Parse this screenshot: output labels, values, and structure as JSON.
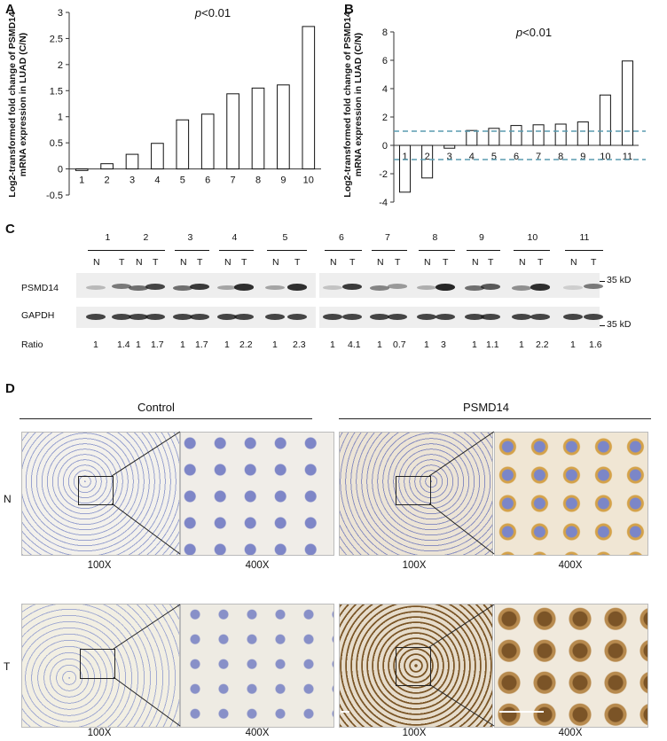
{
  "panels": {
    "a": "A",
    "b": "B",
    "c": "C",
    "d": "D"
  },
  "chart_data": [
    {
      "type": "bar",
      "ylabel": "Log2-transformed fold change of PSMD14 mRNA expression in LUAD (C/N)",
      "annotation": "p<0.01",
      "categories": [
        "1",
        "2",
        "3",
        "4",
        "5",
        "6",
        "7",
        "8",
        "9",
        "10"
      ],
      "values": [
        -0.03,
        0.1,
        0.28,
        0.49,
        0.94,
        1.05,
        1.44,
        1.55,
        1.61,
        2.73
      ],
      "ylim": [
        -0.5,
        3
      ],
      "yticks": [
        "-0.5",
        "0",
        "0.5",
        "1",
        "1.5",
        "2",
        "2.5",
        "3"
      ]
    },
    {
      "type": "bar",
      "ylabel": "Log2-transformed fold change of PSMD14 mRNA expression in LUAD (C/N)",
      "annotation": "p<0.01",
      "categories": [
        "1",
        "2",
        "3",
        "4",
        "5",
        "6",
        "7",
        "8",
        "9",
        "10",
        "11"
      ],
      "values": [
        -3.3,
        -2.3,
        -0.2,
        1.05,
        1.2,
        1.4,
        1.45,
        1.5,
        1.65,
        3.55,
        5.95
      ],
      "ylim": [
        -4,
        8
      ],
      "yticks": [
        "-4",
        "-2",
        "0",
        "2",
        "4",
        "6",
        "8"
      ],
      "reference_lines": [
        1,
        -1
      ]
    }
  ],
  "blot": {
    "lanes": [
      "1",
      "2",
      "3",
      "4",
      "5",
      "6",
      "7",
      "8",
      "9",
      "10",
      "11"
    ],
    "lane_pair": [
      "N",
      "T"
    ],
    "rows": [
      "PSMD14",
      "GAPDH"
    ],
    "markers": [
      "35 kD",
      "35 kD"
    ],
    "ratio_label": "Ratio",
    "ratios": [
      "1",
      "1.4",
      "1",
      "1.7",
      "1",
      "1.7",
      "1",
      "2.2",
      "1",
      "2.3",
      "1",
      "4.1",
      "1",
      "0.7",
      "1",
      "3",
      "1",
      "1.1",
      "1",
      "2.2",
      "1",
      "1.6"
    ]
  },
  "ihc": {
    "groups": [
      "Control",
      "PSMD14"
    ],
    "rows": [
      "N",
      "T"
    ],
    "magnifications": [
      "100X",
      "400X",
      "100X",
      "400X"
    ]
  }
}
